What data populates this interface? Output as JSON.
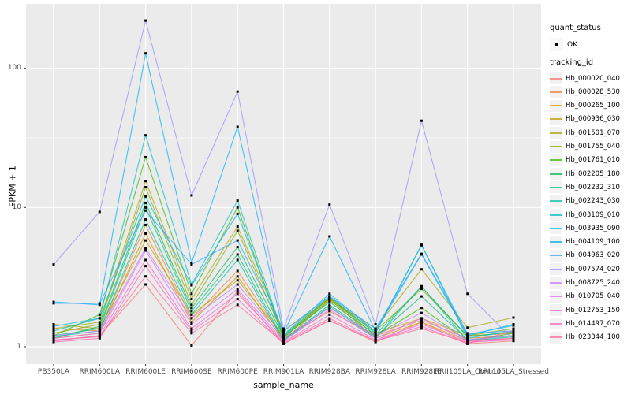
{
  "figure": {
    "background": "#FFFFFF",
    "panel_background": "#EBEBEB",
    "gridline_color": "#FFFFFF",
    "tick_color": "#333333",
    "axis_text_color": "#4D4D4D",
    "point_color": "#000000"
  },
  "axes": {
    "y_title": "FPKM + 1",
    "x_title": "sample_name",
    "y_tick_labels": [
      "1",
      "10",
      "100"
    ],
    "y_tick_values": [
      1,
      10,
      100
    ]
  },
  "legend": {
    "quant_status_title": "quant_status",
    "quant_status_ok_label": "OK",
    "tracking_id_title": "tracking_id"
  },
  "chart_data": {
    "type": "line",
    "title": "",
    "xlabel": "sample_name",
    "ylabel": "FPKM + 1",
    "y_scale": "log10",
    "ylim": [
      0.75,
      290
    ],
    "grid": true,
    "legend_position": "right",
    "y_major_gridlines": [
      1,
      10,
      100
    ],
    "y_minor_gridlines": [
      3.1623,
      31.623
    ],
    "categories": [
      "PB350LA",
      "RRIM600LA",
      "RRIM600LE",
      "RRIM600SE",
      "RRIM600PE",
      "RRIM901LA",
      "RRIM928BA",
      "RRIM928LA",
      "RRIM928LE",
      "RRII105LA_Control",
      "RRII105LA_Stressed"
    ],
    "series": [
      {
        "name": "Hb_000020_040",
        "color": "#F8766D",
        "quant_status": "OK",
        "values": [
          1.1,
          1.2,
          2.8,
          1.02,
          2.5,
          1.05,
          1.55,
          1.08,
          1.5,
          1.05,
          1.1
        ]
      },
      {
        "name": "Hb_000028_530",
        "color": "#EA8331",
        "quant_status": "OK",
        "values": [
          1.35,
          1.3,
          7.5,
          1.6,
          3.5,
          1.15,
          1.8,
          1.2,
          1.55,
          1.15,
          1.2
        ]
      },
      {
        "name": "Hb_000265_100",
        "color": "#D89000",
        "quant_status": "OK",
        "values": [
          1.15,
          1.25,
          6.5,
          1.5,
          3.2,
          1.1,
          2.2,
          1.15,
          1.5,
          1.1,
          1.15
        ]
      },
      {
        "name": "Hb_000936_030",
        "color": "#C09B00",
        "quant_status": "OK",
        "values": [
          1.45,
          1.35,
          5.8,
          1.7,
          3.0,
          1.2,
          2.25,
          1.25,
          1.6,
          1.2,
          1.25
        ]
      },
      {
        "name": "Hb_001501_070",
        "color": "#A3A500",
        "quant_status": "OK",
        "values": [
          1.35,
          1.5,
          15.5,
          2.2,
          7.3,
          1.3,
          2.2,
          1.35,
          3.6,
          1.37,
          1.62
        ]
      },
      {
        "name": "Hb_001755_040",
        "color": "#7CAE00",
        "quant_status": "OK",
        "values": [
          1.25,
          1.45,
          14.0,
          2.0,
          6.8,
          1.2,
          2.15,
          1.3,
          2.6,
          1.2,
          1.35
        ]
      },
      {
        "name": "Hb_001761_010",
        "color": "#39B600",
        "quant_status": "OK",
        "values": [
          1.2,
          1.7,
          23.0,
          2.4,
          10.0,
          1.15,
          2.25,
          1.2,
          1.9,
          1.1,
          1.25
        ]
      },
      {
        "name": "Hb_002205_180",
        "color": "#00BB4E",
        "quant_status": "OK",
        "values": [
          1.15,
          1.4,
          10.8,
          1.9,
          5.2,
          1.18,
          2.1,
          1.22,
          2.7,
          1.18,
          1.28
        ]
      },
      {
        "name": "Hb_002232_310",
        "color": "#00BF7D",
        "quant_status": "OK",
        "values": [
          1.2,
          1.35,
          10.0,
          1.8,
          4.6,
          1.12,
          2.0,
          1.18,
          2.3,
          1.12,
          1.2
        ]
      },
      {
        "name": "Hb_002243_030",
        "color": "#00C1A3",
        "quant_status": "OK",
        "values": [
          1.18,
          1.3,
          8.2,
          1.7,
          4.2,
          1.1,
          1.95,
          1.15,
          2.72,
          1.1,
          1.18
        ]
      },
      {
        "name": "Hb_003109_010",
        "color": "#00BFC4",
        "quant_status": "OK",
        "values": [
          1.3,
          1.6,
          33.0,
          2.8,
          11.2,
          1.2,
          2.3,
          1.25,
          5.4,
          1.15,
          1.3
        ]
      },
      {
        "name": "Hb_003935_090",
        "color": "#00BAE0",
        "quant_status": "OK",
        "values": [
          1.4,
          1.6,
          12.0,
          2.76,
          9.0,
          1.22,
          2.4,
          1.28,
          5.35,
          1.22,
          1.42
        ]
      },
      {
        "name": "Hb_004109_100",
        "color": "#00B0F6",
        "quant_status": "OK",
        "values": [
          2.1,
          2.0,
          128.0,
          4.0,
          38.0,
          1.25,
          6.2,
          1.3,
          4.6,
          1.2,
          1.45
        ]
      },
      {
        "name": "Hb_004963_020",
        "color": "#35A2FF",
        "quant_status": "OK",
        "values": [
          2.05,
          2.05,
          9.5,
          3.9,
          5.8,
          1.3,
          2.3,
          1.35,
          4.65,
          1.25,
          1.3
        ]
      },
      {
        "name": "Hb_007574_020",
        "color": "#9590FF",
        "quant_status": "OK",
        "values": [
          3.9,
          9.3,
          220.0,
          12.2,
          68.0,
          1.35,
          10.5,
          1.45,
          42.0,
          2.4,
          1.12
        ]
      },
      {
        "name": "Hb_008725_240",
        "color": "#C77CFF",
        "quant_status": "OK",
        "values": [
          1.2,
          1.3,
          5.1,
          1.6,
          2.8,
          1.15,
          1.9,
          1.2,
          1.75,
          1.12,
          1.2
        ]
      },
      {
        "name": "Hb_010705_040",
        "color": "#E76BF3",
        "quant_status": "OK",
        "values": [
          1.15,
          1.25,
          4.9,
          1.45,
          2.6,
          1.1,
          1.85,
          1.15,
          1.6,
          1.1,
          1.15
        ]
      },
      {
        "name": "Hb_012753_150",
        "color": "#FA62DB",
        "quant_status": "OK",
        "values": [
          1.1,
          1.2,
          4.2,
          1.35,
          2.4,
          1.08,
          1.7,
          1.12,
          1.45,
          1.08,
          1.12
        ]
      },
      {
        "name": "Hb_014497_070",
        "color": "#FF62BC",
        "quant_status": "OK",
        "values": [
          1.08,
          1.15,
          3.8,
          1.3,
          2.2,
          1.05,
          1.54,
          1.1,
          1.4,
          1.05,
          1.31
        ]
      },
      {
        "name": "Hb_023344_100",
        "color": "#FF6A98",
        "quant_status": "OK",
        "values": [
          1.12,
          1.18,
          3.2,
          1.25,
          2.0,
          1.07,
          1.6,
          1.1,
          1.35,
          1.07,
          1.15
        ]
      }
    ]
  }
}
